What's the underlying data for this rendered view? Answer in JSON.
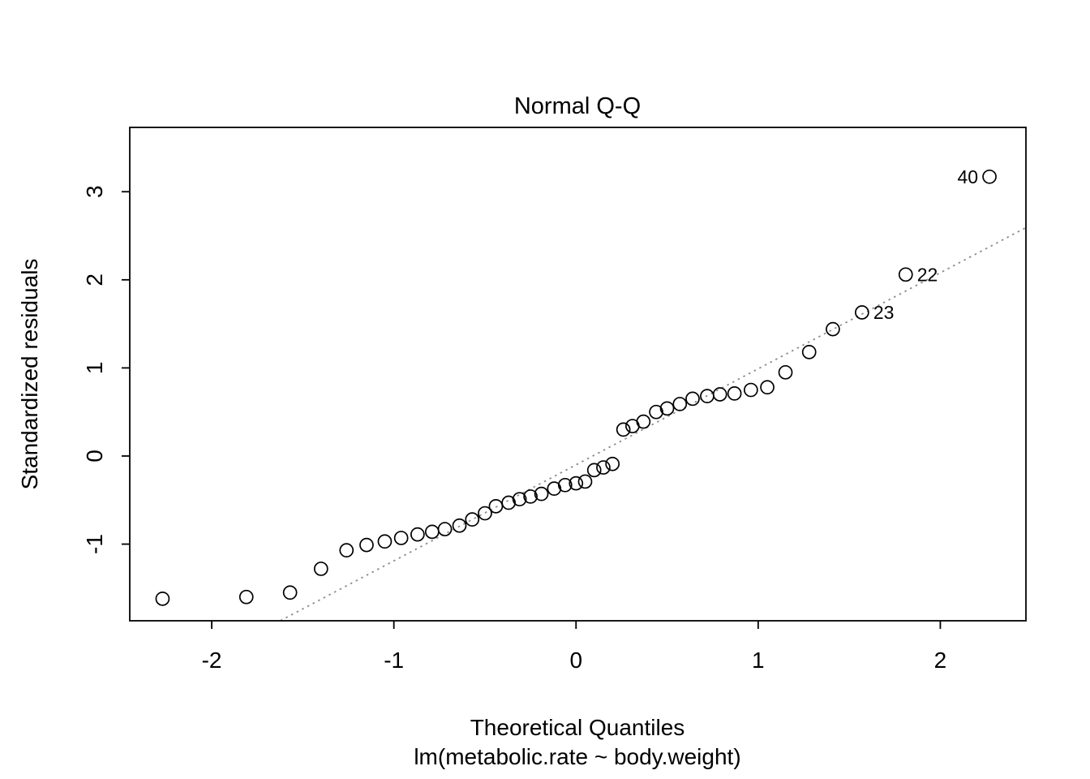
{
  "chart_data": {
    "type": "scatter",
    "title": "Normal Q-Q",
    "xlabel": "Theoretical Quantiles",
    "sublabel": "lm(metabolic.rate ~ body.weight)",
    "ylabel": "Standardized residuals",
    "xlim": [
      -2.45,
      2.47
    ],
    "ylim": [
      -1.87,
      3.73
    ],
    "x_ticks": [
      -2,
      -1,
      0,
      1,
      2
    ],
    "y_ticks": [
      -1,
      0,
      1,
      2,
      3
    ],
    "grid": false,
    "legend": "none",
    "marker": "open-circle",
    "ref_line": {
      "slope": 1.09,
      "intercept": -0.1,
      "style": "dotted",
      "color": "#8c8c8c"
    },
    "points": [
      [
        -2.27,
        -1.62
      ],
      [
        -1.81,
        -1.6
      ],
      [
        -1.57,
        -1.55
      ],
      [
        -1.4,
        -1.28
      ],
      [
        -1.26,
        -1.07
      ],
      [
        -1.15,
        -1.01
      ],
      [
        -1.05,
        -0.97
      ],
      [
        -0.96,
        -0.93
      ],
      [
        -0.87,
        -0.89
      ],
      [
        -0.79,
        -0.86
      ],
      [
        -0.72,
        -0.83
      ],
      [
        -0.64,
        -0.79
      ],
      [
        -0.57,
        -0.72
      ],
      [
        -0.5,
        -0.65
      ],
      [
        -0.44,
        -0.57
      ],
      [
        -0.37,
        -0.53
      ],
      [
        -0.31,
        -0.49
      ],
      [
        -0.25,
        -0.46
      ],
      [
        -0.19,
        -0.43
      ],
      [
        -0.12,
        -0.37
      ],
      [
        -0.06,
        -0.33
      ],
      [
        0.0,
        -0.31
      ],
      [
        0.05,
        -0.29
      ],
      [
        0.1,
        -0.16
      ],
      [
        0.15,
        -0.13
      ],
      [
        0.2,
        -0.09
      ],
      [
        0.26,
        0.3
      ],
      [
        0.31,
        0.34
      ],
      [
        0.37,
        0.39
      ],
      [
        0.44,
        0.5
      ],
      [
        0.5,
        0.54
      ],
      [
        0.57,
        0.59
      ],
      [
        0.64,
        0.65
      ],
      [
        0.72,
        0.68
      ],
      [
        0.79,
        0.7
      ],
      [
        0.87,
        0.71
      ],
      [
        0.96,
        0.75
      ],
      [
        1.05,
        0.78
      ],
      [
        1.15,
        0.95
      ],
      [
        1.28,
        1.18
      ],
      [
        1.41,
        1.44
      ],
      [
        1.57,
        1.63
      ],
      [
        1.81,
        2.06
      ],
      [
        2.27,
        3.17
      ]
    ],
    "point_labels": [
      {
        "label": "40",
        "x": 2.27,
        "y": 3.17,
        "side": "left"
      },
      {
        "label": "22",
        "x": 1.81,
        "y": 2.06,
        "side": "right"
      },
      {
        "label": "23",
        "x": 1.57,
        "y": 1.63,
        "side": "right"
      }
    ]
  }
}
